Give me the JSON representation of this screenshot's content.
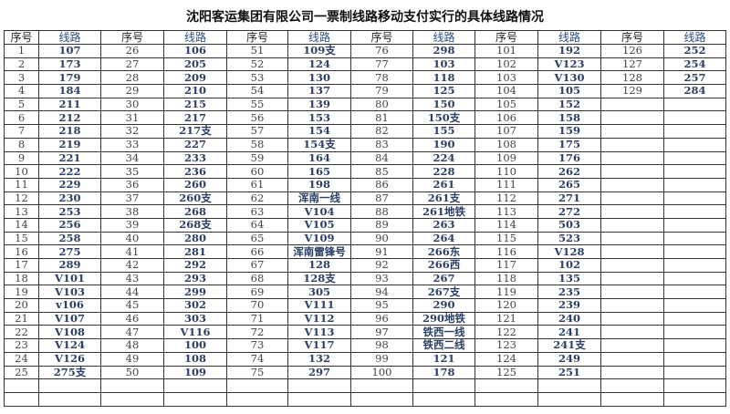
{
  "title": "沈阳客运集团有限公司一票制线路移动支付实行的具体线路情况",
  "header": {
    "seq": "序号",
    "route": "线路"
  },
  "groups": [
    {
      "start": 1,
      "routes": [
        "107",
        "173",
        "179",
        "184",
        "211",
        "212",
        "218",
        "219",
        "221",
        "222",
        "229",
        "230",
        "253",
        "256",
        "258",
        "275",
        "289",
        "V101",
        "V103",
        "v106",
        "V107",
        "V108",
        "V124",
        "V126",
        "275支"
      ]
    },
    {
      "start": 26,
      "routes": [
        "106",
        "205",
        "209",
        "210",
        "215",
        "217",
        "217支",
        "227",
        "233",
        "236",
        "260",
        "260支",
        "268",
        "268支",
        "280",
        "281",
        "292",
        "293",
        "299",
        "302",
        "303",
        "V116",
        "100",
        "108",
        "109"
      ]
    },
    {
      "start": 51,
      "routes": [
        "109支",
        "124",
        "130",
        "137",
        "139",
        "153",
        "154",
        "154支",
        "164",
        "165",
        "198",
        "浑南一线",
        "V104",
        "V105",
        "V109",
        "浑南雷锋号",
        "128",
        "128支",
        "305",
        "V111",
        "V112",
        "V113",
        "V117",
        "132",
        "297"
      ]
    },
    {
      "start": 76,
      "routes": [
        "298",
        "103",
        "118",
        "125",
        "150",
        "150支",
        "155",
        "190",
        "224",
        "228",
        "261",
        "261支",
        "261地铁",
        "263",
        "264",
        "266东",
        "266西",
        "267",
        "267支",
        "290",
        "290地铁",
        "铁西一线",
        "铁西二线",
        "121",
        "178"
      ]
    },
    {
      "start": 101,
      "routes": [
        "192",
        "V123",
        "V130",
        "105",
        "152",
        "158",
        "159",
        "175",
        "176",
        "262",
        "265",
        "271",
        "272",
        "503",
        "523",
        "V128",
        "102",
        "135",
        "235",
        "239",
        "240",
        "241",
        "241支",
        "249",
        "251"
      ]
    },
    {
      "start": 126,
      "routes": [
        "252",
        "254",
        "257",
        "284"
      ]
    }
  ]
}
